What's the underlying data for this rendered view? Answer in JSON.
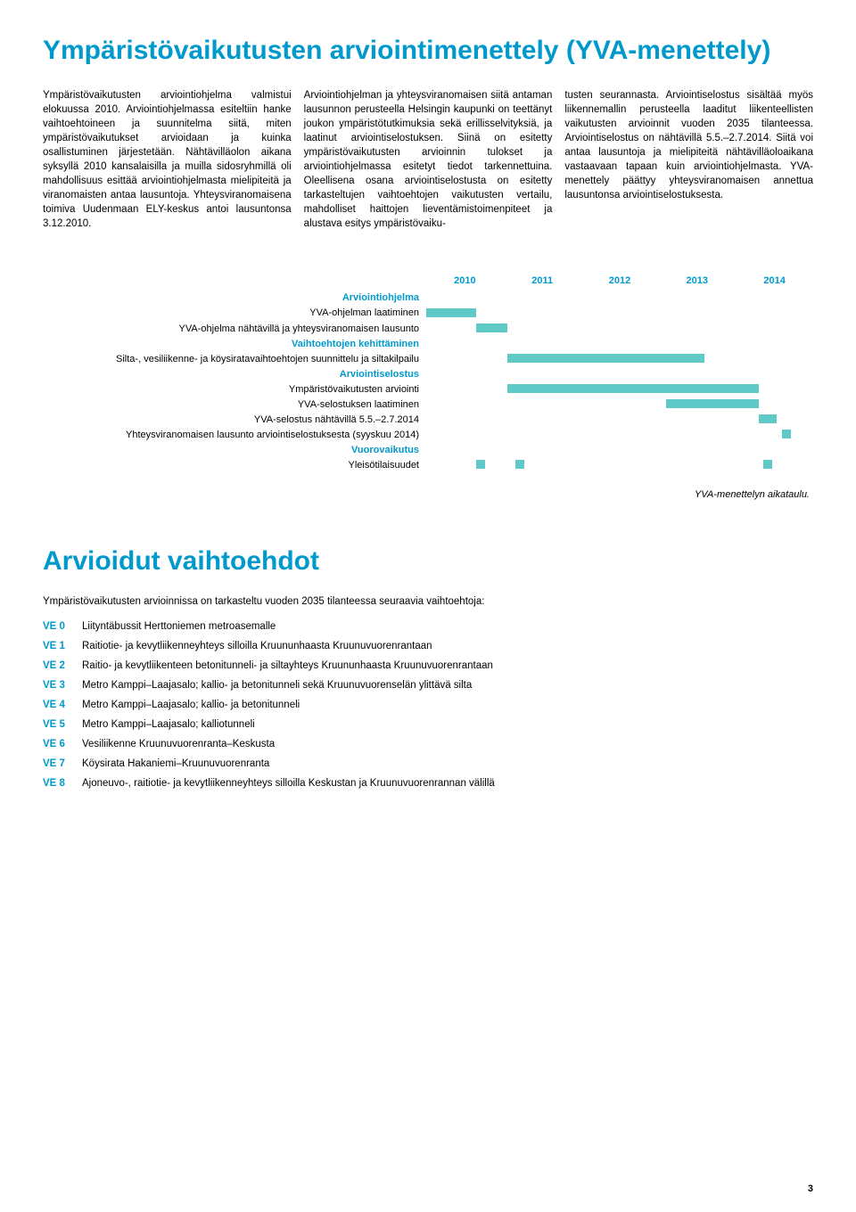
{
  "title": "Ympäristövaikutusten arviointimenettely (YVA-menettely)",
  "columns": {
    "c1": "Ympäristövaikutusten arviointiohjelma valmistui elokuussa 2010. Arviointiohjelmassa esiteltiin hanke vaihtoehtoineen ja suunnitelma siitä, miten ympäristövaikutukset arvioidaan ja kuinka osallistuminen järjestetään. Nähtävilläolon aikana syksyllä 2010 kansalaisilla ja muilla sidosryhmillä oli mahdollisuus esittää arviointiohjelmasta mielipiteitä ja viranomaisten antaa lausuntoja. Yhteysviranomaisena toimiva Uudenmaan ELY-keskus antoi lausuntonsa 3.12.2010.",
    "c2": "Arviointiohjelman ja yhteysviranomaisen siitä antaman lausunnon perusteella Helsingin kaupunki on teettänyt joukon ympäristötutkimuksia sekä erillisselvityksiä, ja laatinut arviointiselostuksen. Siinä on esitetty ympäristövaikutusten arvioinnin tulokset ja arviointiohjelmassa esitetyt tiedot tarkennettuina. Oleellisena osana arviointiselostusta on esitetty tarkasteltujen vaihtoehtojen vaikutusten vertailu, mahdolliset haittojen lieventämistoimenpiteet ja alustava esitys ympäristövaiku-",
    "c3": "tusten seurannasta. Arviointiselostus sisältää myös liikennemallin perusteella laaditut liikenteellisten vaikutusten arvioinnit vuoden 2035 tilanteessa. Arviointiselostus on nähtävillä 5.5.–2.7.2014. Siitä voi antaa lausuntoja ja mielipiteitä nähtävilläoloaikana vastaavaan tapaan kuin arviointiohjelmasta. YVA-menettely päättyy yhteysviranomaisen annettua lausuntonsa arviointiselostuksesta."
  },
  "gantt": {
    "years": [
      "2010",
      "2011",
      "2012",
      "2013",
      "2014"
    ],
    "labels": [
      {
        "text": "Arviointiohjelma",
        "style": "blue"
      },
      {
        "text": "YVA-ohjelman laatiminen",
        "style": ""
      },
      {
        "text": "YVA-ohjelma nähtävillä ja yhteysviranomaisen lausunto",
        "style": ""
      },
      {
        "text": "Vaihtoehtojen kehittäminen",
        "style": "blue"
      },
      {
        "text": "Silta-, vesiliikenne- ja köysiratavaihtoehtojen suunnittelu ja siltakilpailu",
        "style": ""
      },
      {
        "text": "Arviointiselostus",
        "style": "blue"
      },
      {
        "text": "Ympäristövaikutusten arviointi",
        "style": ""
      },
      {
        "text": "YVA-selostuksen laatiminen",
        "style": ""
      },
      {
        "text": "YVA-selostus nähtävillä 5.5.–2.7.2014",
        "style": ""
      },
      {
        "text": "Yhteysviranomaisen lausunto arviointiselostuksesta (syyskuu 2014)",
        "style": ""
      },
      {
        "text": "Vuorovaikutus",
        "style": "blue"
      },
      {
        "text": "Yleisötilaisuudet",
        "style": ""
      }
    ],
    "bars": [
      {
        "row": 1,
        "left_pct": 0,
        "width_pct": 13,
        "type": "bar"
      },
      {
        "row": 2,
        "left_pct": 13,
        "width_pct": 8,
        "type": "bar"
      },
      {
        "row": 4,
        "left_pct": 21,
        "width_pct": 51,
        "type": "bar"
      },
      {
        "row": 6,
        "left_pct": 21,
        "width_pct": 65,
        "type": "bar"
      },
      {
        "row": 7,
        "left_pct": 62,
        "width_pct": 24,
        "type": "bar"
      },
      {
        "row": 8,
        "left_pct": 86,
        "width_pct": 4.5,
        "type": "bar"
      },
      {
        "row": 9,
        "left_pct": 92,
        "width_pct": 3,
        "type": "dot"
      },
      {
        "row": 11,
        "left_pct": 13,
        "width_pct": 3,
        "type": "dot"
      },
      {
        "row": 11,
        "left_pct": 23,
        "width_pct": 3,
        "type": "dot"
      },
      {
        "row": 11,
        "left_pct": 87,
        "width_pct": 3,
        "type": "dot"
      }
    ],
    "chart_bg": "#ffffff",
    "bar_color": "#5fc9c7",
    "year_color": "#0099cc"
  },
  "caption": "YVA-menettelyn aikataulu.",
  "section2_title": "Arvioidut vaihtoehdot",
  "intro": "Ympäristövaikutusten arvioinnissa on tarkasteltu vuoden 2035 tilanteessa seuraavia vaihtoehtoja:",
  "ve": [
    {
      "k": "VE 0",
      "v": "Liityntäbussit Herttoniemen metroasemalle"
    },
    {
      "k": "VE 1",
      "v": "Raitiotie- ja kevytliikenneyhteys silloilla Kruununhaasta Kruunuvuorenrantaan"
    },
    {
      "k": "VE 2",
      "v": "Raitio- ja kevytliikenteen betonitunneli- ja siltayhteys Kruununhaasta Kruunuvuorenrantaan"
    },
    {
      "k": "VE 3",
      "v": "Metro Kamppi–Laajasalo; kallio- ja betonitunneli sekä Kruunuvuorenselän ylittävä silta"
    },
    {
      "k": "VE 4",
      "v": "Metro Kamppi–Laajasalo; kallio- ja betonitunneli"
    },
    {
      "k": "VE 5",
      "v": "Metro Kamppi–Laajasalo; kalliotunneli"
    },
    {
      "k": "VE 6",
      "v": "Vesiliikenne Kruunuvuorenranta–Keskusta"
    },
    {
      "k": "VE 7",
      "v": "Köysirata Hakaniemi–Kruunuvuorenranta"
    },
    {
      "k": "VE 8",
      "v": "Ajoneuvo-, raitiotie- ja kevytliikenneyhteys silloilla Keskustan ja Kruunuvuorenrannan välillä"
    }
  ],
  "page_number": "3"
}
